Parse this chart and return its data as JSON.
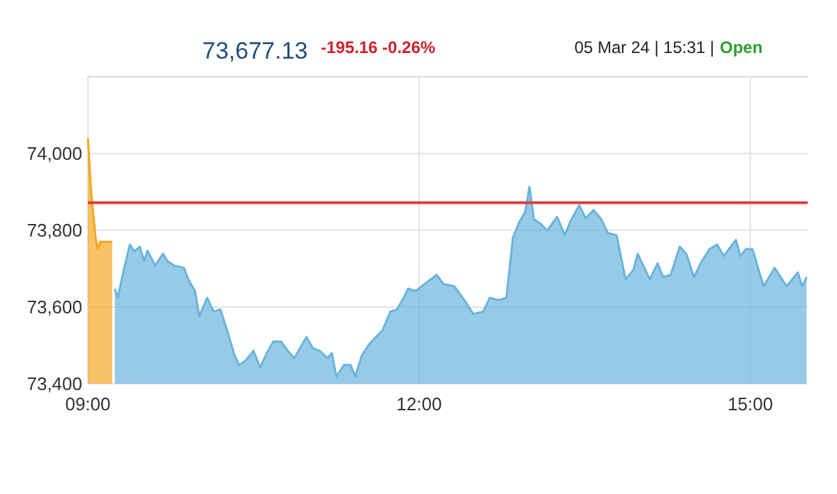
{
  "chart_data": {
    "type": "area",
    "annotations": [
      "73,677.13",
      "-195.16 -0.26%",
      "05 Mar 24 | 15:31 |",
      "Open"
    ],
    "xlim": [
      9,
      15.52
    ],
    "ylim": [
      73400,
      74200
    ],
    "xticks": [
      {
        "value": 9,
        "label": "09:00"
      },
      {
        "value": 12,
        "label": "12:00"
      },
      {
        "value": 15,
        "label": "15:00"
      }
    ],
    "yticks": [
      {
        "value": 73400,
        "label": "73,400"
      },
      {
        "value": 73600,
        "label": "73,600"
      },
      {
        "value": 73800,
        "label": "73,800"
      },
      {
        "value": 74000,
        "label": "74,000"
      }
    ],
    "grid": true,
    "ref_lines": [
      {
        "axis": "y",
        "value": 73872,
        "color": "#e03c3c"
      }
    ],
    "series": [
      {
        "color": "#f5a623",
        "x": [
          9.0,
          9.03,
          9.07,
          9.09,
          9.11,
          9.22
        ],
        "values": [
          74040,
          73900,
          73780,
          73750,
          73770,
          73770
        ]
      },
      {
        "color": "#6ab4dc",
        "x": [
          9.244,
          9.27,
          9.32,
          9.38,
          9.42,
          9.47,
          9.51,
          9.54,
          9.61,
          9.68,
          9.72,
          9.78,
          9.87,
          9.91,
          9.97,
          10.01,
          10.08,
          10.14,
          10.2,
          10.26,
          10.33,
          10.37,
          10.43,
          10.5,
          10.56,
          10.62,
          10.68,
          10.75,
          10.81,
          10.87,
          10.98,
          11.04,
          11.1,
          11.17,
          11.21,
          11.25,
          11.32,
          11.38,
          11.42,
          11.48,
          11.55,
          11.61,
          11.67,
          11.74,
          11.8,
          11.86,
          11.9,
          11.97,
          12.05,
          12.16,
          12.22,
          12.32,
          12.41,
          12.49,
          12.58,
          12.64,
          12.72,
          12.79,
          12.85,
          12.91,
          12.96,
          13.0,
          13.04,
          13.1,
          13.16,
          13.25,
          13.32,
          13.37,
          13.45,
          13.51,
          13.58,
          13.65,
          13.71,
          13.79,
          13.87,
          13.94,
          13.98,
          14.05,
          14.09,
          14.16,
          14.21,
          14.28,
          14.36,
          14.42,
          14.49,
          14.55,
          14.63,
          14.7,
          14.76,
          14.87,
          14.91,
          14.96,
          15.02,
          15.12,
          15.22,
          15.33,
          15.43,
          15.47,
          15.51
        ],
        "values": [
          73648,
          73624,
          73690,
          73763,
          73745,
          73757,
          73720,
          73747,
          73708,
          73739,
          73720,
          73708,
          73702,
          73672,
          73642,
          73576,
          73624,
          73588,
          73594,
          73540,
          73473,
          73449,
          73461,
          73486,
          73443,
          73480,
          73510,
          73510,
          73486,
          73467,
          73522,
          73492,
          73486,
          73467,
          73480,
          73419,
          73449,
          73449,
          73419,
          73473,
          73504,
          73522,
          73540,
          73588,
          73594,
          73624,
          73648,
          73642,
          73660,
          73684,
          73660,
          73654,
          73618,
          73582,
          73588,
          73624,
          73618,
          73624,
          73781,
          73823,
          73847,
          73913,
          73829,
          73817,
          73799,
          73835,
          73787,
          73823,
          73865,
          73831,
          73853,
          73829,
          73793,
          73787,
          73672,
          73696,
          73739,
          73696,
          73672,
          73714,
          73678,
          73684,
          73757,
          73739,
          73678,
          73714,
          73751,
          73763,
          73733,
          73775,
          73733,
          73751,
          73751,
          73654,
          73702,
          73654,
          73690,
          73654,
          73678
        ]
      }
    ]
  }
}
